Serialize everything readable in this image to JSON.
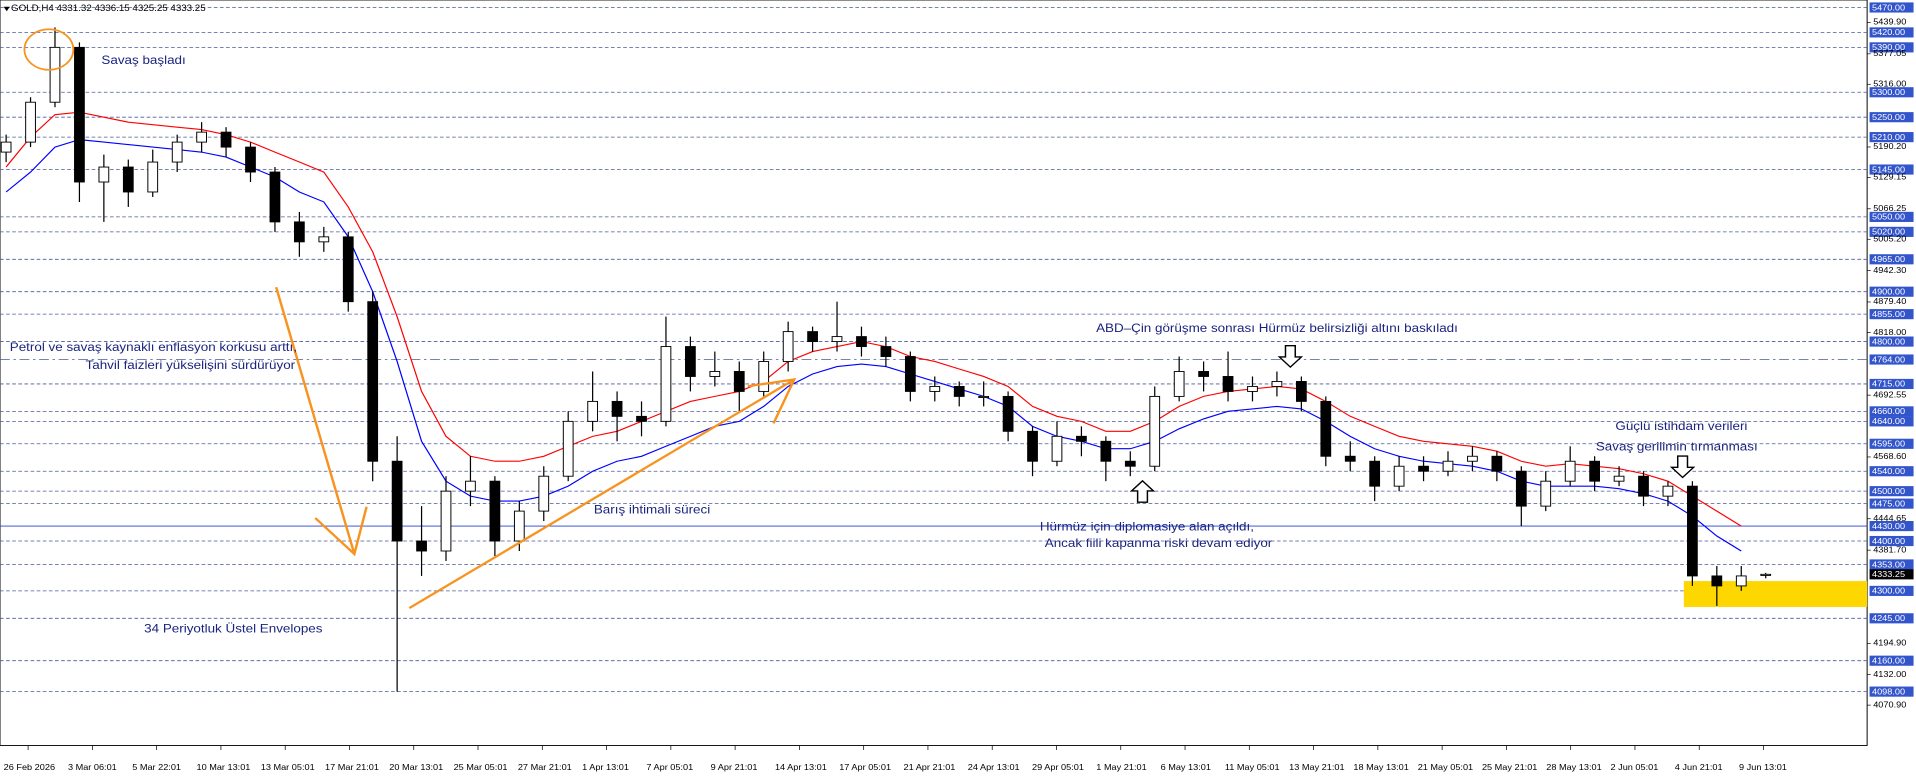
{
  "chart_data": {
    "type": "candlestick",
    "title": "GOLD,H4",
    "ylim": [
      3990,
      5485
    ],
    "up_color": "#ffffff",
    "down_color": "#000000",
    "candles": [
      [
        5180,
        5215,
        5160,
        5200
      ],
      [
        5200,
        5290,
        5190,
        5280
      ],
      [
        5280,
        5430,
        5270,
        5390
      ],
      [
        5390,
        5400,
        5080,
        5120
      ],
      [
        5120,
        5175,
        5040,
        5150
      ],
      [
        5150,
        5165,
        5070,
        5100
      ],
      [
        5100,
        5185,
        5090,
        5160
      ],
      [
        5160,
        5215,
        5140,
        5200
      ],
      [
        5200,
        5240,
        5180,
        5220
      ],
      [
        5220,
        5230,
        5170,
        5190
      ],
      [
        5190,
        5200,
        5120,
        5140
      ],
      [
        5140,
        5150,
        5020,
        5040
      ],
      [
        5040,
        5060,
        4970,
        5000
      ],
      [
        5000,
        5030,
        4980,
        5010
      ],
      [
        5010,
        5020,
        4860,
        4880
      ],
      [
        4880,
        4900,
        4520,
        4560
      ],
      [
        4560,
        4610,
        4098,
        4400
      ],
      [
        4400,
        4470,
        4330,
        4380
      ],
      [
        4380,
        4530,
        4360,
        4500
      ],
      [
        4500,
        4570,
        4470,
        4520
      ],
      [
        4520,
        4530,
        4370,
        4400
      ],
      [
        4400,
        4480,
        4380,
        4460
      ],
      [
        4460,
        4550,
        4440,
        4530
      ],
      [
        4530,
        4660,
        4520,
        4640
      ],
      [
        4640,
        4740,
        4620,
        4680
      ],
      [
        4680,
        4700,
        4600,
        4650
      ],
      [
        4650,
        4680,
        4610,
        4640
      ],
      [
        4640,
        4850,
        4630,
        4790
      ],
      [
        4790,
        4810,
        4700,
        4730
      ],
      [
        4730,
        4780,
        4710,
        4740
      ],
      [
        4740,
        4760,
        4660,
        4700
      ],
      [
        4700,
        4780,
        4690,
        4760
      ],
      [
        4760,
        4840,
        4740,
        4820
      ],
      [
        4820,
        4830,
        4780,
        4800
      ],
      [
        4800,
        4880,
        4780,
        4810
      ],
      [
        4810,
        4830,
        4770,
        4790
      ],
      [
        4790,
        4810,
        4750,
        4770
      ],
      [
        4770,
        4780,
        4680,
        4700
      ],
      [
        4700,
        4730,
        4680,
        4710
      ],
      [
        4710,
        4720,
        4670,
        4690
      ],
      [
        4690,
        4720,
        4670,
        4690
      ],
      [
        4690,
        4700,
        4600,
        4620
      ],
      [
        4620,
        4630,
        4530,
        4560
      ],
      [
        4560,
        4640,
        4550,
        4610
      ],
      [
        4610,
        4630,
        4570,
        4600
      ],
      [
        4600,
        4610,
        4520,
        4560
      ],
      [
        4560,
        4580,
        4530,
        4550
      ],
      [
        4550,
        4710,
        4540,
        4690
      ],
      [
        4690,
        4770,
        4680,
        4740
      ],
      [
        4740,
        4760,
        4700,
        4730
      ],
      [
        4730,
        4780,
        4680,
        4700
      ],
      [
        4700,
        4730,
        4680,
        4710
      ],
      [
        4710,
        4740,
        4690,
        4720
      ],
      [
        4720,
        4730,
        4660,
        4680
      ],
      [
        4680,
        4690,
        4550,
        4570
      ],
      [
        4570,
        4600,
        4540,
        4560
      ],
      [
        4560,
        4570,
        4480,
        4510
      ],
      [
        4510,
        4570,
        4500,
        4550
      ],
      [
        4550,
        4570,
        4520,
        4540
      ],
      [
        4540,
        4580,
        4530,
        4560
      ],
      [
        4560,
        4590,
        4540,
        4570
      ],
      [
        4570,
        4580,
        4520,
        4540
      ],
      [
        4540,
        4550,
        4430,
        4470
      ],
      [
        4470,
        4540,
        4460,
        4520
      ],
      [
        4520,
        4590,
        4510,
        4560
      ],
      [
        4560,
        4570,
        4500,
        4520
      ],
      [
        4520,
        4550,
        4510,
        4530
      ],
      [
        4530,
        4540,
        4470,
        4490
      ],
      [
        4490,
        4520,
        4470,
        4510
      ],
      [
        4510,
        4520,
        4310,
        4330
      ],
      [
        4330,
        4350,
        4270,
        4310
      ],
      [
        4310,
        4350,
        4300,
        4330
      ],
      [
        4331.32,
        4336.15,
        4325.25,
        4333.25
      ]
    ],
    "series": [
      {
        "color": "#ff0000",
        "values": [
          5150,
          5210,
          5255,
          5260,
          5250,
          5240,
          5235,
          5230,
          5225,
          5215,
          5200,
          5180,
          5160,
          5140,
          5070,
          4980,
          4850,
          4700,
          4610,
          4570,
          4560,
          4560,
          4570,
          4590,
          4610,
          4620,
          4640,
          4660,
          4680,
          4690,
          4700,
          4720,
          4760,
          4780,
          4790,
          4800,
          4790,
          4770,
          4760,
          4745,
          4730,
          4710,
          4670,
          4650,
          4640,
          4620,
          4620,
          4640,
          4670,
          4690,
          4700,
          4705,
          4710,
          4705,
          4680,
          4650,
          4630,
          4610,
          4600,
          4595,
          4590,
          4580,
          4560,
          4550,
          4555,
          4550,
          4545,
          4535,
          4520,
          4490,
          4460,
          4430,
          null
        ]
      },
      {
        "color": "#0000ff",
        "values": [
          5100,
          5140,
          5190,
          5205,
          5200,
          5195,
          5190,
          5185,
          5180,
          5170,
          5150,
          5130,
          5100,
          5080,
          5010,
          4900,
          4760,
          4600,
          4520,
          4490,
          4480,
          4480,
          4490,
          4510,
          4540,
          4560,
          4570,
          4590,
          4610,
          4630,
          4640,
          4670,
          4710,
          4735,
          4750,
          4755,
          4750,
          4735,
          4720,
          4705,
          4690,
          4670,
          4630,
          4610,
          4600,
          4585,
          4585,
          4600,
          4625,
          4645,
          4660,
          4665,
          4670,
          4665,
          4640,
          4610,
          4585,
          4570,
          4560,
          4555,
          4550,
          4540,
          4520,
          4510,
          4510,
          4510,
          4505,
          4495,
          4480,
          4450,
          4410,
          4380,
          null
        ]
      }
    ],
    "levels": [
      {
        "value": 5470,
        "label": "5470.00"
      },
      {
        "value": 5420,
        "label": "5420.00"
      },
      {
        "value": 5390,
        "label": "5390.00"
      },
      {
        "value": 5300,
        "label": "5300.00"
      },
      {
        "value": 5250,
        "label": "5250.00"
      },
      {
        "value": 5210,
        "label": "5210.00"
      },
      {
        "value": 5145,
        "label": "5145.00"
      },
      {
        "value": 5050,
        "label": "5050.00"
      },
      {
        "value": 5020,
        "label": "5020.00"
      },
      {
        "value": 4965,
        "label": "4965.00"
      },
      {
        "value": 4900,
        "label": "4900.00"
      },
      {
        "value": 4855,
        "label": "4855.00"
      },
      {
        "value": 4800,
        "label": "4800.00"
      },
      {
        "value": 4764,
        "label": "4764.00",
        "style": "dashdot"
      },
      {
        "value": 4715,
        "label": "4715.00"
      },
      {
        "value": 4660,
        "label": "4660.00"
      },
      {
        "value": 4640,
        "label": "4640.00"
      },
      {
        "value": 4595,
        "label": "4595.00"
      },
      {
        "value": 4540,
        "label": "4540.00"
      },
      {
        "value": 4500,
        "label": "4500.00"
      },
      {
        "value": 4475,
        "label": "4475.00"
      },
      {
        "value": 4430,
        "label": "4430.00",
        "style": "solid"
      },
      {
        "value": 4400,
        "label": "4400.00"
      },
      {
        "value": 4353,
        "label": "4353.00"
      },
      {
        "value": 4300,
        "label": "4300.00"
      },
      {
        "value": 4245,
        "label": "4245.00"
      },
      {
        "value": 4160,
        "label": "4160.00"
      },
      {
        "value": 4098,
        "label": "4098.00"
      }
    ],
    "yticks": [
      {
        "value": 5439.9,
        "label": "5439.90"
      },
      {
        "value": 5377.05,
        "label": "5377.05"
      },
      {
        "value": 5316,
        "label": "5316.00"
      },
      {
        "value": 5190.2,
        "label": "5190.20"
      },
      {
        "value": 5129.15,
        "label": "5129.15"
      },
      {
        "value": 5066.25,
        "label": "5066.25"
      },
      {
        "value": 5005.2,
        "label": "5005.20"
      },
      {
        "value": 4942.3,
        "label": "4942.30"
      },
      {
        "value": 4879.4,
        "label": "4879.40"
      },
      {
        "value": 4818,
        "label": "4818.00"
      },
      {
        "value": 4692.55,
        "label": "4692.55"
      },
      {
        "value": 4568.6,
        "label": "4568.60"
      },
      {
        "value": 4444.65,
        "label": "4444.65"
      },
      {
        "value": 4381.7,
        "label": "4381.70"
      },
      {
        "value": 4194.9,
        "label": "4194.90"
      },
      {
        "value": 4132,
        "label": "4132.00"
      },
      {
        "value": 4070.9,
        "label": "4070.90"
      }
    ],
    "x_labels": [
      "26 Feb 2026",
      "3 Mar 06:01",
      "5 Mar 22:01",
      "10 Mar 13:01",
      "13 Mar 05:01",
      "17 Mar 21:01",
      "20 Mar 13:01",
      "25 Mar 05:01",
      "27 Mar 21:01",
      "1 Apr 13:01",
      "7 Apr 05:01",
      "9 Apr 21:01",
      "14 Apr 13:01",
      "17 Apr 05:01",
      "21 Apr 21:01",
      "24 Apr 13:01",
      "29 Apr 05:01",
      "1 May 21:01",
      "6 May 13:01",
      "11 May 05:01",
      "13 May 21:01",
      "18 May 13:01",
      "21 May 05:01",
      "25 May 21:01",
      "28 May 13:01",
      "2 Jun 05:01",
      "4 Jun 21:01",
      "9 Jun 13:01"
    ],
    "annotations": [
      "Savaş başladı",
      "Petrol ve savaş kaynaklı enflasyon korkusu arttı,",
      "Tahvil faizleri yükselişini sürdürüyor",
      "Barış ihtimali süreci",
      "34 Periyotluk Üstel Envelopes",
      "ABD–Çin görüşme sonrası Hürmüz belirsizliği altını baskıladı",
      "Hürmüz için diplomasiye alan açıldı,",
      "Ancak fiili kapanma riski devam ediyor",
      "Güçlü istihdam verileri",
      "Savaş gerilimin tırmanması"
    ]
  }
}
